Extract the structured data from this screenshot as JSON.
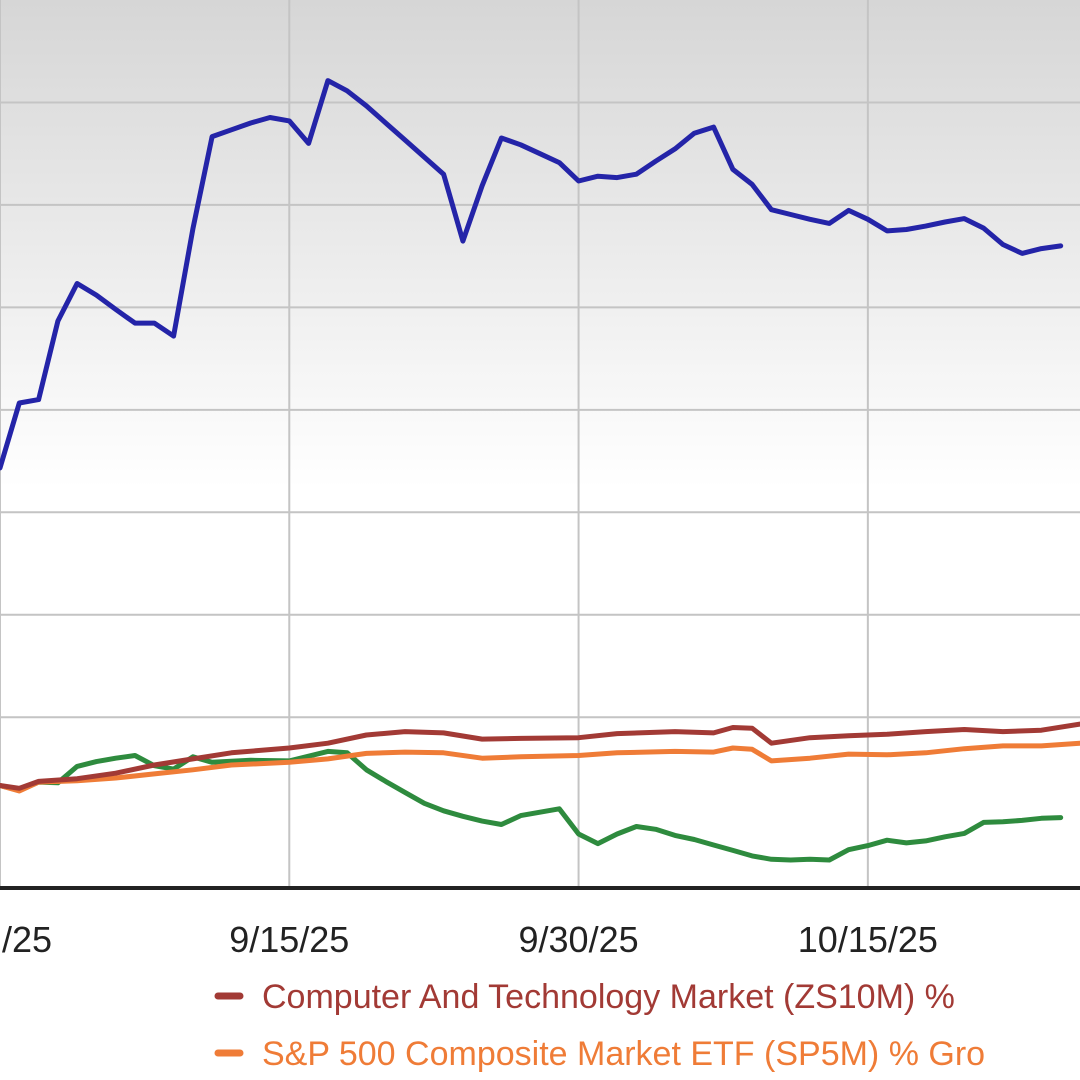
{
  "chart_data": {
    "type": "line",
    "x_range": [
      "2025-08-31",
      "2025-10-26"
    ],
    "y_range": [
      -10,
      120
    ],
    "grid": true,
    "x_ticks": [
      {
        "date": "2025-08-31",
        "label": "/25"
      },
      {
        "date": "2025-09-15",
        "label": "9/15/25"
      },
      {
        "date": "2025-09-30",
        "label": "9/30/25"
      },
      {
        "date": "2025-10-15",
        "label": "10/15/25"
      }
    ],
    "y_gridlines": [
      105,
      90,
      75,
      60,
      45,
      30,
      15
    ],
    "legend": {
      "placement": "bottom",
      "entries": [
        {
          "label": "Computer And Technology Market (ZS10M) %",
          "color": "#a23a35"
        },
        {
          "label": "S&P 500 Composite Market ETF (SP5M) % Gro",
          "color": "#ef7c37"
        }
      ]
    },
    "series": [
      {
        "color": "#2424a8",
        "points": [
          [
            "2025-08-31",
            51.5
          ],
          [
            "2025-09-01",
            61.0
          ],
          [
            "2025-09-02",
            61.5
          ],
          [
            "2025-09-03",
            73.0
          ],
          [
            "2025-09-04",
            78.5
          ],
          [
            "2025-09-05",
            76.8
          ],
          [
            "2025-09-06",
            74.7
          ],
          [
            "2025-09-07",
            72.7
          ],
          [
            "2025-09-08",
            72.7
          ],
          [
            "2025-09-09",
            70.8
          ],
          [
            "2025-09-10",
            86.5
          ],
          [
            "2025-09-11",
            100.0
          ],
          [
            "2025-09-12",
            101.0
          ],
          [
            "2025-09-13",
            102.0
          ],
          [
            "2025-09-14",
            102.8
          ],
          [
            "2025-09-15",
            102.3
          ],
          [
            "2025-09-16",
            99.0
          ],
          [
            "2025-09-17",
            108.2
          ],
          [
            "2025-09-18",
            106.7
          ],
          [
            "2025-09-19",
            104.5
          ],
          [
            "2025-09-20",
            102.0
          ],
          [
            "2025-09-21",
            99.5
          ],
          [
            "2025-09-22",
            97.0
          ],
          [
            "2025-09-23",
            94.5
          ],
          [
            "2025-09-24",
            84.7
          ],
          [
            "2025-09-25",
            92.8
          ],
          [
            "2025-09-26",
            99.8
          ],
          [
            "2025-09-27",
            98.8
          ],
          [
            "2025-09-28",
            97.5
          ],
          [
            "2025-09-29",
            96.2
          ],
          [
            "2025-09-30",
            93.5
          ],
          [
            "2025-10-01",
            94.2
          ],
          [
            "2025-10-02",
            94.0
          ],
          [
            "2025-10-03",
            94.5
          ],
          [
            "2025-10-04",
            96.4
          ],
          [
            "2025-10-05",
            98.2
          ],
          [
            "2025-10-06",
            100.5
          ],
          [
            "2025-10-07",
            101.4
          ],
          [
            "2025-10-08",
            95.2
          ],
          [
            "2025-10-09",
            93.0
          ],
          [
            "2025-10-10",
            89.3
          ],
          [
            "2025-10-11",
            88.6
          ],
          [
            "2025-10-12",
            87.9
          ],
          [
            "2025-10-13",
            87.3
          ],
          [
            "2025-10-14",
            89.2
          ],
          [
            "2025-10-15",
            87.9
          ],
          [
            "2025-10-16",
            86.2
          ],
          [
            "2025-10-17",
            86.4
          ],
          [
            "2025-10-18",
            86.9
          ],
          [
            "2025-10-19",
            87.5
          ],
          [
            "2025-10-20",
            88.0
          ],
          [
            "2025-10-21",
            86.6
          ],
          [
            "2025-10-22",
            84.2
          ],
          [
            "2025-10-23",
            82.9
          ],
          [
            "2025-10-24",
            83.6
          ],
          [
            "2025-10-25",
            84.0
          ]
        ]
      },
      {
        "color": "#a23a35",
        "points": [
          [
            "2025-08-31",
            5.0
          ],
          [
            "2025-09-01",
            4.6
          ],
          [
            "2025-09-02",
            5.6
          ],
          [
            "2025-09-04",
            6.0
          ],
          [
            "2025-09-06",
            6.8
          ],
          [
            "2025-09-08",
            8.0
          ],
          [
            "2025-09-10",
            8.9
          ],
          [
            "2025-09-12",
            9.8
          ],
          [
            "2025-09-15",
            10.5
          ],
          [
            "2025-09-17",
            11.2
          ],
          [
            "2025-09-19",
            12.4
          ],
          [
            "2025-09-21",
            12.9
          ],
          [
            "2025-09-23",
            12.7
          ],
          [
            "2025-09-25",
            11.8
          ],
          [
            "2025-09-27",
            11.9
          ],
          [
            "2025-09-30",
            12.0
          ],
          [
            "2025-10-02",
            12.6
          ],
          [
            "2025-10-05",
            12.9
          ],
          [
            "2025-10-07",
            12.7
          ],
          [
            "2025-10-08",
            13.5
          ],
          [
            "2025-10-09",
            13.4
          ],
          [
            "2025-10-10",
            11.2
          ],
          [
            "2025-10-12",
            12.0
          ],
          [
            "2025-10-14",
            12.3
          ],
          [
            "2025-10-16",
            12.5
          ],
          [
            "2025-10-18",
            12.9
          ],
          [
            "2025-10-20",
            13.2
          ],
          [
            "2025-10-22",
            12.9
          ],
          [
            "2025-10-24",
            13.1
          ],
          [
            "2025-10-26",
            14.0
          ]
        ]
      },
      {
        "color": "#ef7c37",
        "points": [
          [
            "2025-08-31",
            5.0
          ],
          [
            "2025-09-01",
            4.2
          ],
          [
            "2025-09-02",
            5.5
          ],
          [
            "2025-09-04",
            5.7
          ],
          [
            "2025-09-06",
            6.1
          ],
          [
            "2025-09-08",
            6.7
          ],
          [
            "2025-09-10",
            7.3
          ],
          [
            "2025-09-12",
            8.0
          ],
          [
            "2025-09-15",
            8.4
          ],
          [
            "2025-09-17",
            8.9
          ],
          [
            "2025-09-19",
            9.7
          ],
          [
            "2025-09-21",
            9.9
          ],
          [
            "2025-09-23",
            9.8
          ],
          [
            "2025-09-25",
            9.0
          ],
          [
            "2025-09-27",
            9.2
          ],
          [
            "2025-09-30",
            9.4
          ],
          [
            "2025-10-02",
            9.8
          ],
          [
            "2025-10-05",
            10.0
          ],
          [
            "2025-10-07",
            9.9
          ],
          [
            "2025-10-08",
            10.5
          ],
          [
            "2025-10-09",
            10.3
          ],
          [
            "2025-10-10",
            8.6
          ],
          [
            "2025-10-12",
            9.0
          ],
          [
            "2025-10-14",
            9.6
          ],
          [
            "2025-10-16",
            9.5
          ],
          [
            "2025-10-18",
            9.8
          ],
          [
            "2025-10-20",
            10.4
          ],
          [
            "2025-10-22",
            10.8
          ],
          [
            "2025-10-24",
            10.8
          ],
          [
            "2025-10-26",
            11.2
          ]
        ]
      },
      {
        "color": "#2e8b3e",
        "points": [
          [
            "2025-08-31",
            5.0
          ],
          [
            "2025-09-01",
            4.3
          ],
          [
            "2025-09-02",
            5.5
          ],
          [
            "2025-09-03",
            5.4
          ],
          [
            "2025-09-04",
            7.8
          ],
          [
            "2025-09-05",
            8.5
          ],
          [
            "2025-09-06",
            9.0
          ],
          [
            "2025-09-07",
            9.4
          ],
          [
            "2025-09-08",
            7.9
          ],
          [
            "2025-09-09",
            7.4
          ],
          [
            "2025-09-10",
            9.2
          ],
          [
            "2025-09-11",
            8.4
          ],
          [
            "2025-09-13",
            8.7
          ],
          [
            "2025-09-15",
            8.6
          ],
          [
            "2025-09-17",
            10.0
          ],
          [
            "2025-09-18",
            9.8
          ],
          [
            "2025-09-19",
            7.3
          ],
          [
            "2025-09-20",
            5.6
          ],
          [
            "2025-09-21",
            4.0
          ],
          [
            "2025-09-22",
            2.4
          ],
          [
            "2025-09-23",
            1.3
          ],
          [
            "2025-09-24",
            0.5
          ],
          [
            "2025-09-25",
            -0.2
          ],
          [
            "2025-09-26",
            -0.7
          ],
          [
            "2025-09-27",
            0.6
          ],
          [
            "2025-09-28",
            1.1
          ],
          [
            "2025-09-29",
            1.6
          ],
          [
            "2025-09-30",
            -2.1
          ],
          [
            "2025-10-01",
            -3.5
          ],
          [
            "2025-10-02",
            -2.1
          ],
          [
            "2025-10-03",
            -1.0
          ],
          [
            "2025-10-04",
            -1.4
          ],
          [
            "2025-10-05",
            -2.3
          ],
          [
            "2025-10-06",
            -2.9
          ],
          [
            "2025-10-07",
            -3.7
          ],
          [
            "2025-10-08",
            -4.5
          ],
          [
            "2025-10-09",
            -5.3
          ],
          [
            "2025-10-10",
            -5.8
          ],
          [
            "2025-10-11",
            -5.9
          ],
          [
            "2025-10-12",
            -5.8
          ],
          [
            "2025-10-13",
            -5.9
          ],
          [
            "2025-10-14",
            -4.4
          ],
          [
            "2025-10-15",
            -3.8
          ],
          [
            "2025-10-16",
            -3.0
          ],
          [
            "2025-10-17",
            -3.4
          ],
          [
            "2025-10-18",
            -3.1
          ],
          [
            "2025-10-19",
            -2.5
          ],
          [
            "2025-10-20",
            -2.0
          ],
          [
            "2025-10-21",
            -0.4
          ],
          [
            "2025-10-22",
            -0.3
          ],
          [
            "2025-10-23",
            -0.1
          ],
          [
            "2025-10-24",
            0.2
          ],
          [
            "2025-10-25",
            0.3
          ]
        ]
      }
    ]
  }
}
